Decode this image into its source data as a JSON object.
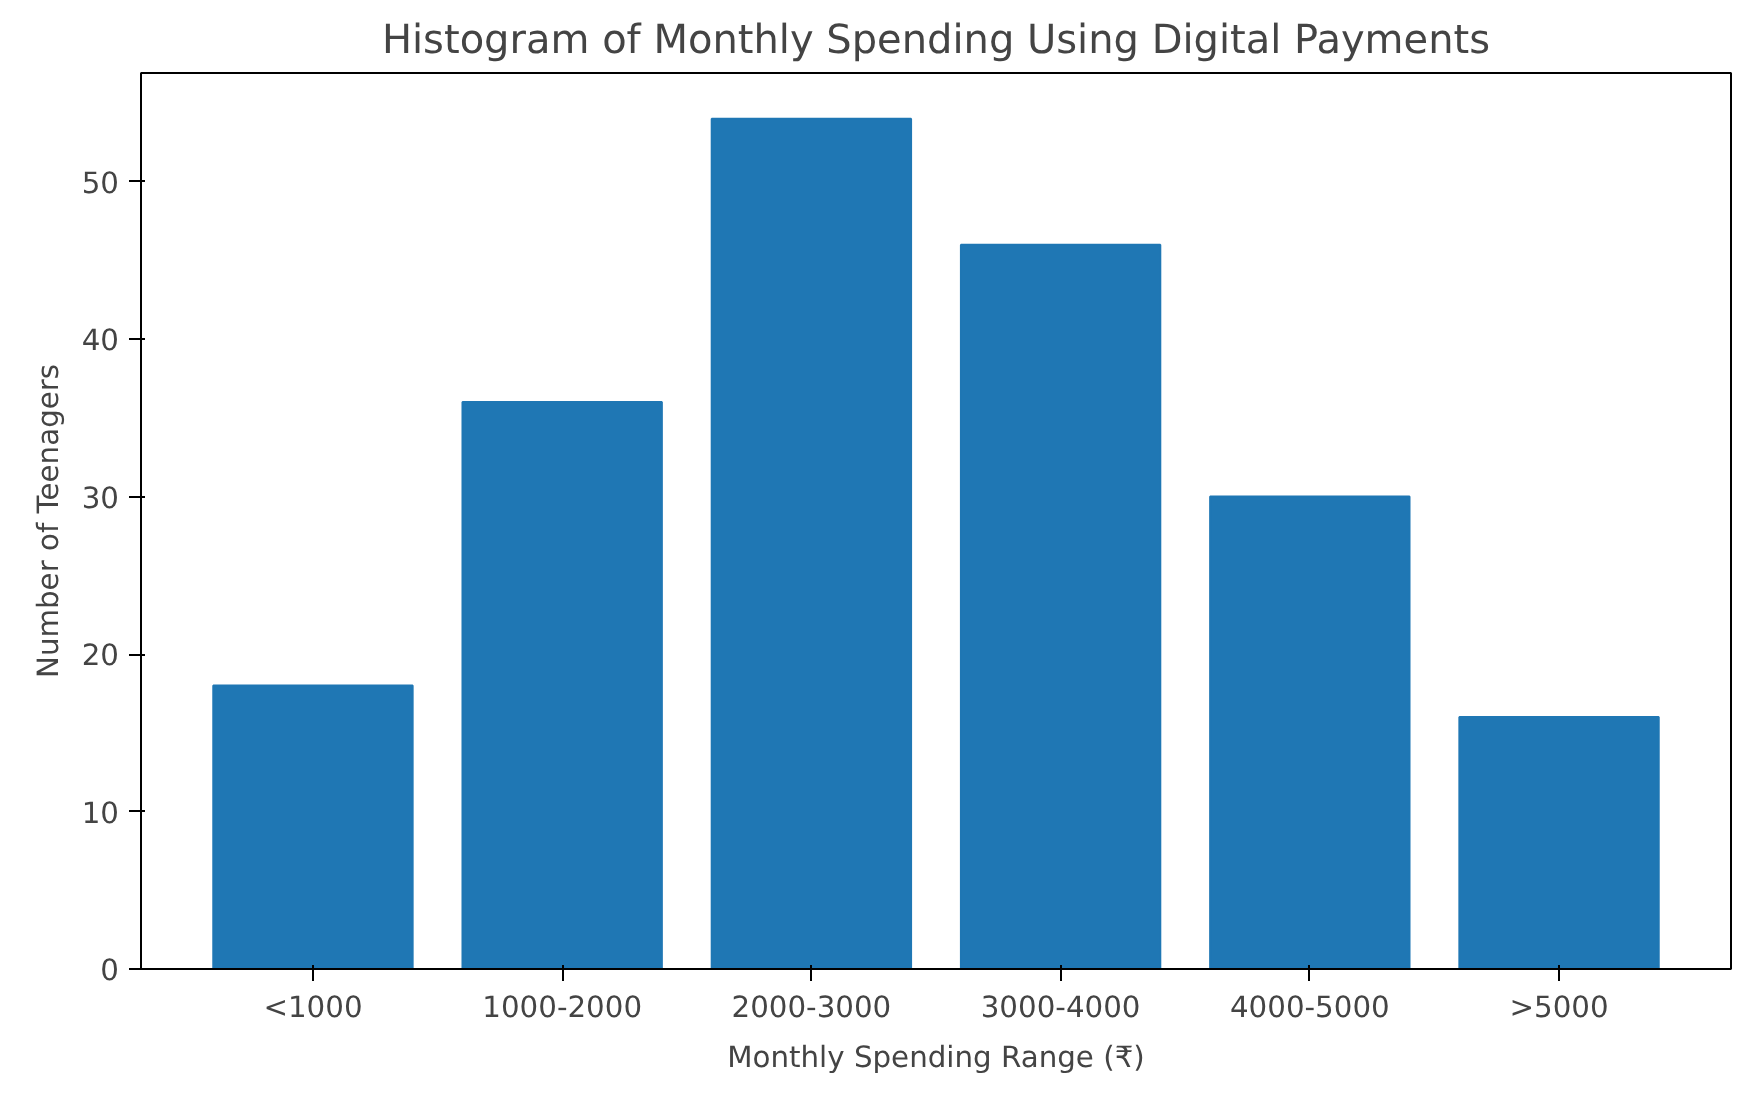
{
  "chart_data": {
    "type": "bar",
    "title": "Histogram of Monthly Spending Using Digital Payments",
    "xlabel": "Monthly Spending Range (₹)",
    "ylabel": "Number of Teenagers",
    "categories": [
      "<1000",
      "1000-2000",
      "2000-3000",
      "3000-4000",
      "4000-5000",
      ">5000"
    ],
    "values": [
      18,
      36,
      54,
      46,
      30,
      16
    ],
    "color": "#1f77b4",
    "ylim": [
      0,
      56.9
    ],
    "yticks": [
      0,
      10,
      20,
      30,
      40,
      50
    ],
    "grid": false
  }
}
